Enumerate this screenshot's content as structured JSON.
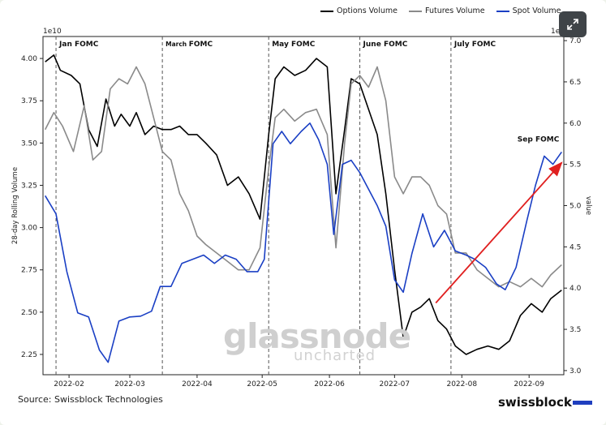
{
  "chart_data": {
    "type": "line",
    "title": "",
    "ylabel": "28-day Rolling Volume",
    "y2label": "value",
    "y_offset_label": "1e10",
    "y2_offset_label": "1e8",
    "ylim": [
      2.13,
      4.13
    ],
    "y2lim": [
      2.95,
      7.05
    ],
    "xlim": [
      "2022-01-20",
      "2022-09-17"
    ],
    "yticks": [
      2.25,
      2.5,
      2.75,
      3.0,
      3.25,
      3.5,
      3.75,
      4.0
    ],
    "y2ticks": [
      3.0,
      3.5,
      4.0,
      4.5,
      5.0,
      5.5,
      6.0,
      6.5,
      7.0
    ],
    "xticks": [
      "2022-02",
      "2022-03",
      "2022-04",
      "2022-05",
      "2022-06",
      "2022-07",
      "2022-08",
      "2022-09"
    ],
    "legend_position": "top-right",
    "grid": false,
    "series": [
      {
        "name": "Options Volume",
        "color": "#000000",
        "axis": "left",
        "x": [
          "2022-01-21",
          "2022-01-25",
          "2022-01-28",
          "2022-02-02",
          "2022-02-06",
          "2022-02-10",
          "2022-02-14",
          "2022-02-18",
          "2022-02-22",
          "2022-02-25",
          "2022-03-01",
          "2022-03-04",
          "2022-03-08",
          "2022-03-12",
          "2022-03-16",
          "2022-03-20",
          "2022-03-24",
          "2022-03-28",
          "2022-04-01",
          "2022-04-05",
          "2022-04-10",
          "2022-04-15",
          "2022-04-20",
          "2022-04-25",
          "2022-04-30",
          "2022-05-04",
          "2022-05-07",
          "2022-05-11",
          "2022-05-16",
          "2022-05-21",
          "2022-05-26",
          "2022-05-31",
          "2022-06-04",
          "2022-06-08",
          "2022-06-11",
          "2022-06-15",
          "2022-06-19",
          "2022-06-23",
          "2022-06-27",
          "2022-07-01",
          "2022-07-05",
          "2022-07-09",
          "2022-07-13",
          "2022-07-17",
          "2022-07-21",
          "2022-07-25",
          "2022-07-29",
          "2022-08-03",
          "2022-08-08",
          "2022-08-13",
          "2022-08-18",
          "2022-08-23",
          "2022-08-28",
          "2022-09-02",
          "2022-09-07",
          "2022-09-11",
          "2022-09-16"
        ],
        "values": [
          3.98,
          4.02,
          3.93,
          3.9,
          3.85,
          3.58,
          3.48,
          3.76,
          3.6,
          3.67,
          3.6,
          3.68,
          3.55,
          3.6,
          3.58,
          3.58,
          3.6,
          3.55,
          3.55,
          3.5,
          3.43,
          3.25,
          3.3,
          3.2,
          3.05,
          3.55,
          3.88,
          3.95,
          3.9,
          3.93,
          4.0,
          3.95,
          3.2,
          3.58,
          3.88,
          3.85,
          3.7,
          3.55,
          3.2,
          2.75,
          2.35,
          2.5,
          2.53,
          2.58,
          2.45,
          2.4,
          2.3,
          2.25,
          2.28,
          2.3,
          2.28,
          2.33,
          2.48,
          2.55,
          2.5,
          2.58,
          2.63
        ]
      },
      {
        "name": "Futures Volume",
        "color": "#8a8a8a",
        "axis": "left",
        "x": [
          "2022-01-21",
          "2022-01-25",
          "2022-01-29",
          "2022-02-03",
          "2022-02-08",
          "2022-02-12",
          "2022-02-16",
          "2022-02-20",
          "2022-02-24",
          "2022-02-28",
          "2022-03-04",
          "2022-03-08",
          "2022-03-12",
          "2022-03-16",
          "2022-03-20",
          "2022-03-24",
          "2022-03-28",
          "2022-04-01",
          "2022-04-05",
          "2022-04-10",
          "2022-04-15",
          "2022-04-20",
          "2022-04-25",
          "2022-04-30",
          "2022-05-04",
          "2022-05-07",
          "2022-05-11",
          "2022-05-16",
          "2022-05-21",
          "2022-05-26",
          "2022-05-31",
          "2022-06-04",
          "2022-06-08",
          "2022-06-11",
          "2022-06-15",
          "2022-06-19",
          "2022-06-23",
          "2022-06-27",
          "2022-07-01",
          "2022-07-05",
          "2022-07-09",
          "2022-07-13",
          "2022-07-17",
          "2022-07-21",
          "2022-07-25",
          "2022-07-29",
          "2022-08-03",
          "2022-08-08",
          "2022-08-13",
          "2022-08-18",
          "2022-08-23",
          "2022-08-28",
          "2022-09-02",
          "2022-09-07",
          "2022-09-11",
          "2022-09-16"
        ],
        "values": [
          3.58,
          3.68,
          3.6,
          3.45,
          3.72,
          3.4,
          3.45,
          3.82,
          3.88,
          3.85,
          3.95,
          3.85,
          3.65,
          3.45,
          3.4,
          3.2,
          3.1,
          2.95,
          2.9,
          2.85,
          2.8,
          2.75,
          2.75,
          2.88,
          3.35,
          3.65,
          3.7,
          3.63,
          3.68,
          3.7,
          3.55,
          2.88,
          3.5,
          3.85,
          3.9,
          3.83,
          3.95,
          3.75,
          3.3,
          3.2,
          3.3,
          3.3,
          3.25,
          3.13,
          3.08,
          2.85,
          2.85,
          2.75,
          2.7,
          2.65,
          2.68,
          2.65,
          2.7,
          2.65,
          2.72,
          2.78
        ]
      },
      {
        "name": "Spot Volume",
        "color": "#1a3fc4",
        "axis": "right",
        "x": [
          "2022-01-21",
          "2022-01-26",
          "2022-01-31",
          "2022-02-05",
          "2022-02-10",
          "2022-02-15",
          "2022-02-19",
          "2022-02-24",
          "2022-03-01",
          "2022-03-06",
          "2022-03-11",
          "2022-03-15",
          "2022-03-20",
          "2022-03-25",
          "2022-03-30",
          "2022-04-04",
          "2022-04-09",
          "2022-04-14",
          "2022-04-19",
          "2022-04-24",
          "2022-04-29",
          "2022-05-02",
          "2022-05-06",
          "2022-05-10",
          "2022-05-14",
          "2022-05-19",
          "2022-05-23",
          "2022-05-27",
          "2022-05-31",
          "2022-06-03",
          "2022-06-07",
          "2022-06-11",
          "2022-06-15",
          "2022-06-19",
          "2022-06-23",
          "2022-06-27",
          "2022-07-01",
          "2022-07-05",
          "2022-07-09",
          "2022-07-14",
          "2022-07-19",
          "2022-07-24",
          "2022-07-29",
          "2022-08-03",
          "2022-08-07",
          "2022-08-12",
          "2022-08-17",
          "2022-08-21",
          "2022-08-26",
          "2022-08-31",
          "2022-09-04",
          "2022-09-08",
          "2022-09-12",
          "2022-09-16"
        ],
        "values": [
          5.12,
          4.9,
          4.2,
          3.7,
          3.65,
          3.25,
          3.1,
          3.6,
          3.65,
          3.66,
          3.72,
          4.02,
          4.02,
          4.3,
          4.35,
          4.4,
          4.3,
          4.4,
          4.35,
          4.2,
          4.2,
          4.35,
          5.75,
          5.9,
          5.75,
          5.9,
          6.0,
          5.8,
          5.5,
          4.65,
          5.5,
          5.55,
          5.4,
          5.2,
          5.0,
          4.75,
          4.1,
          3.95,
          4.42,
          4.9,
          4.5,
          4.7,
          4.45,
          4.4,
          4.35,
          4.25,
          4.05,
          3.98,
          4.25,
          4.82,
          5.25,
          5.6,
          5.5,
          5.65
        ]
      }
    ],
    "event_markers": [
      {
        "date": "2022-01-26",
        "label": "Jan FOMC"
      },
      {
        "date": "2022-03-16",
        "label": "March FOMC"
      },
      {
        "date": "2022-05-04",
        "label": "May FOMC"
      },
      {
        "date": "2022-06-15",
        "label": "June FOMC"
      },
      {
        "date": "2022-07-27",
        "label": "July FOMC"
      }
    ],
    "annotations": [
      {
        "label": "Sep FOMC"
      }
    ],
    "arrow": {
      "from": {
        "x": "2022-07-20",
        "y2": 3.82
      },
      "to": {
        "x": "2022-09-16",
        "y2": 5.52
      },
      "color": "#e02020"
    }
  },
  "legend": {
    "items": [
      {
        "label": "Options Volume",
        "color": "#000000"
      },
      {
        "label": "Futures Volume",
        "color": "#8a8a8a"
      },
      {
        "label": "Spot Volume",
        "color": "#1a3fc4"
      }
    ]
  },
  "watermark": {
    "brand": "glassnode",
    "sub": "uncharted"
  },
  "footer": {
    "source": "Source: Swissblock Technologies",
    "brand": "swissblock"
  }
}
